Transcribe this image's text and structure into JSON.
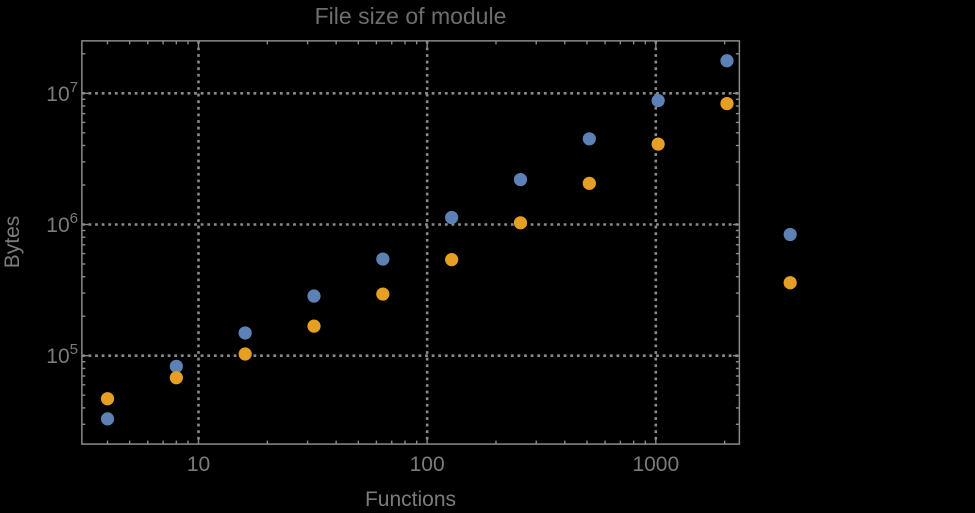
{
  "chart_data": {
    "type": "scatter",
    "title": "File size of module",
    "xlabel": "Functions",
    "ylabel": "Bytes",
    "x_scale": "log",
    "y_scale": "log",
    "xlim": [
      3.09,
      2320
    ],
    "ylim": [
      21200,
      25100000
    ],
    "grid": true,
    "grid_style": "dotted",
    "legend": "none",
    "x_ticks": {
      "major": [
        10,
        100,
        1000
      ],
      "labels": [
        "10",
        "100",
        "1000"
      ]
    },
    "y_ticks": {
      "major": [
        100000,
        1000000,
        10000000
      ],
      "labels": [
        {
          "mantissa": "10",
          "exponent": "5"
        },
        {
          "mantissa": "10",
          "exponent": "6"
        },
        {
          "mantissa": "10",
          "exponent": "7"
        }
      ]
    },
    "series": [
      {
        "name": "blue",
        "color": "#5E81B5",
        "points": [
          [
            4,
            33000
          ],
          [
            8,
            83000
          ],
          [
            16,
            149000
          ],
          [
            32,
            285000
          ],
          [
            64,
            545000
          ],
          [
            128,
            1130000
          ],
          [
            256,
            2200000
          ],
          [
            512,
            4500000
          ],
          [
            1024,
            8800000
          ],
          [
            2048,
            17700000
          ],
          [
            3870,
            840000
          ]
        ]
      },
      {
        "name": "orange",
        "color": "#E5A023",
        "points": [
          [
            4,
            47000
          ],
          [
            8,
            68000
          ],
          [
            16,
            103000
          ],
          [
            32,
            168000
          ],
          [
            64,
            295000
          ],
          [
            128,
            540000
          ],
          [
            256,
            1030000
          ],
          [
            512,
            2060000
          ],
          [
            1024,
            4100000
          ],
          [
            2048,
            8350000
          ],
          [
            3870,
            360000
          ]
        ]
      }
    ]
  },
  "colors": {
    "background": "#000000",
    "frame": "#8a8a8a",
    "grid": "#8a8a8a",
    "tick_labels": "#7b7b7b",
    "axis_labels": "#7b7b7b",
    "title": "#6e6e6e"
  }
}
